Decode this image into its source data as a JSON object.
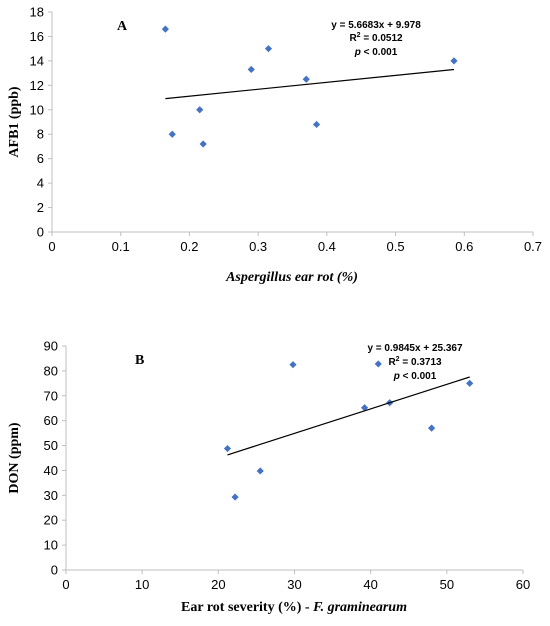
{
  "chart_data": [
    {
      "type": "scatter",
      "panel_label": "A",
      "xlabel": "Aspergillus ear rot (%)",
      "ylabel": "AFB1 (ppb)",
      "xlim": [
        0,
        0.7
      ],
      "ylim": [
        0,
        18
      ],
      "x_ticks": [
        "0",
        "0.1",
        "0.2",
        "0.3",
        "0.4",
        "0.5",
        "0.6",
        "0.7"
      ],
      "y_ticks": [
        "0",
        "2",
        "4",
        "6",
        "8",
        "10",
        "12",
        "14",
        "16",
        "18"
      ],
      "series": [
        {
          "points": [
            {
              "x": 0.165,
              "y": 16.6
            },
            {
              "x": 0.175,
              "y": 8.0
            },
            {
              "x": 0.215,
              "y": 10.0
            },
            {
              "x": 0.22,
              "y": 7.2
            },
            {
              "x": 0.29,
              "y": 13.3
            },
            {
              "x": 0.315,
              "y": 15.0
            },
            {
              "x": 0.37,
              "y": 12.5
            },
            {
              "x": 0.385,
              "y": 8.8
            },
            {
              "x": 0.585,
              "y": 14.0
            }
          ]
        }
      ],
      "trendline": {
        "slope": 5.6683,
        "intercept": 9.978,
        "x_range": [
          0.165,
          0.585
        ]
      },
      "annotation": {
        "equation": "y = 5.6683x + 9.978",
        "r2_prefix": "R",
        "r2_sup": "2",
        "r2_value": " = 0.0512",
        "p_symbol": "p",
        "p_value": " < 0.001"
      },
      "grid": false,
      "marker_color": "#4472c4"
    },
    {
      "type": "scatter",
      "panel_label": "B",
      "xlabel_prefix": "Ear rot severity (%) - ",
      "xlabel_italic": "F. graminearum",
      "ylabel": "DON (ppm)",
      "xlim": [
        0,
        60
      ],
      "ylim": [
        0,
        90
      ],
      "x_ticks": [
        "0",
        "10",
        "20",
        "30",
        "40",
        "50",
        "60"
      ],
      "y_ticks": [
        "0",
        "10",
        "20",
        "30",
        "40",
        "50",
        "60",
        "70",
        "80",
        "90"
      ],
      "series": [
        {
          "points": [
            {
              "x": 21.2,
              "y": 48.8
            },
            {
              "x": 22.2,
              "y": 29.3
            },
            {
              "x": 25.5,
              "y": 39.8
            },
            {
              "x": 29.8,
              "y": 82.5
            },
            {
              "x": 39.2,
              "y": 65.2
            },
            {
              "x": 41.0,
              "y": 82.8
            },
            {
              "x": 42.5,
              "y": 67.2
            },
            {
              "x": 48.0,
              "y": 57.0
            },
            {
              "x": 53.0,
              "y": 75.0
            }
          ]
        }
      ],
      "trendline": {
        "slope": 0.9845,
        "intercept": 25.367,
        "x_range": [
          21.2,
          53.0
        ]
      },
      "annotation": {
        "equation": "y = 0.9845x + 25.367",
        "r2_prefix": "R",
        "r2_sup": "2",
        "r2_value": " = 0.3713",
        "p_symbol": "p",
        "p_value": " < 0.001"
      },
      "grid": false,
      "marker_color": "#4472c4"
    }
  ]
}
